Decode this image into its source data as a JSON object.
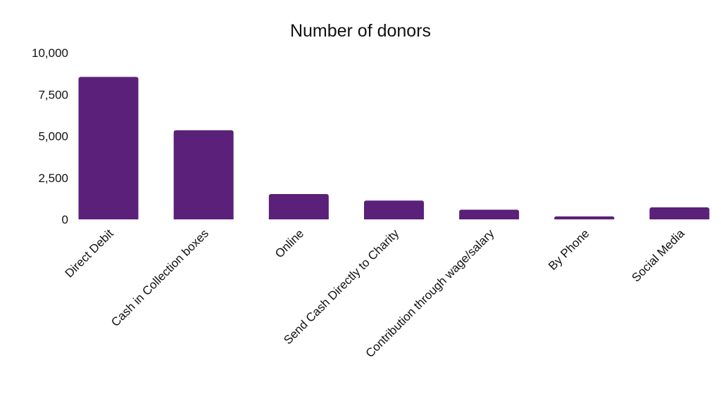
{
  "chart_data": {
    "type": "bar",
    "title": "Number of donors",
    "xlabel": "",
    "ylabel": "",
    "categories": [
      "Direct Debit",
      "Cash in Collection boxes",
      "Online",
      "Send Cash Directly to Charity",
      "Contribution through wage/salary",
      "By Phone",
      "Social Media"
    ],
    "values": [
      8550,
      5350,
      1520,
      1130,
      580,
      180,
      720
    ],
    "ylim": [
      0,
      10000
    ],
    "yticks": [
      0,
      2500,
      5000,
      7500,
      10000
    ],
    "ytick_labels": [
      "0",
      "2,500",
      "5,000",
      "7,500",
      "10,000"
    ],
    "grid": false,
    "legend": "none",
    "bar_color": "#5b2079"
  }
}
